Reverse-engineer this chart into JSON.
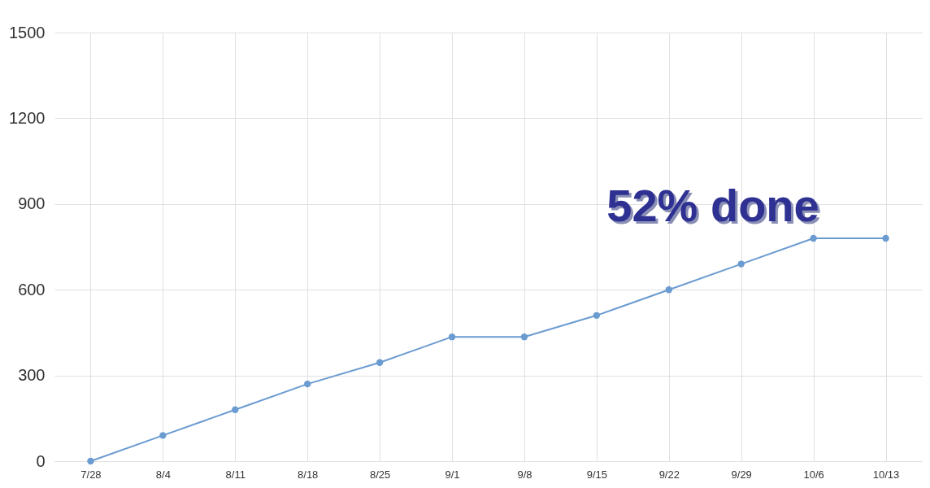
{
  "chart_data": {
    "type": "line",
    "categories": [
      "7/28",
      "8/4",
      "8/11",
      "8/18",
      "8/25",
      "9/1",
      "9/8",
      "9/15",
      "9/22",
      "9/29",
      "10/6",
      "10/13"
    ],
    "series": [
      {
        "color": "#6a9bd1",
        "values": [
          0,
          90,
          180,
          270,
          345,
          435,
          435,
          510,
          600,
          690,
          780,
          780
        ]
      }
    ],
    "ylim": [
      0,
      1500
    ],
    "yticks": [
      0,
      300,
      600,
      900,
      1200,
      1500
    ],
    "grid": true,
    "marker": "circle",
    "annotations": [
      "52% done"
    ]
  }
}
